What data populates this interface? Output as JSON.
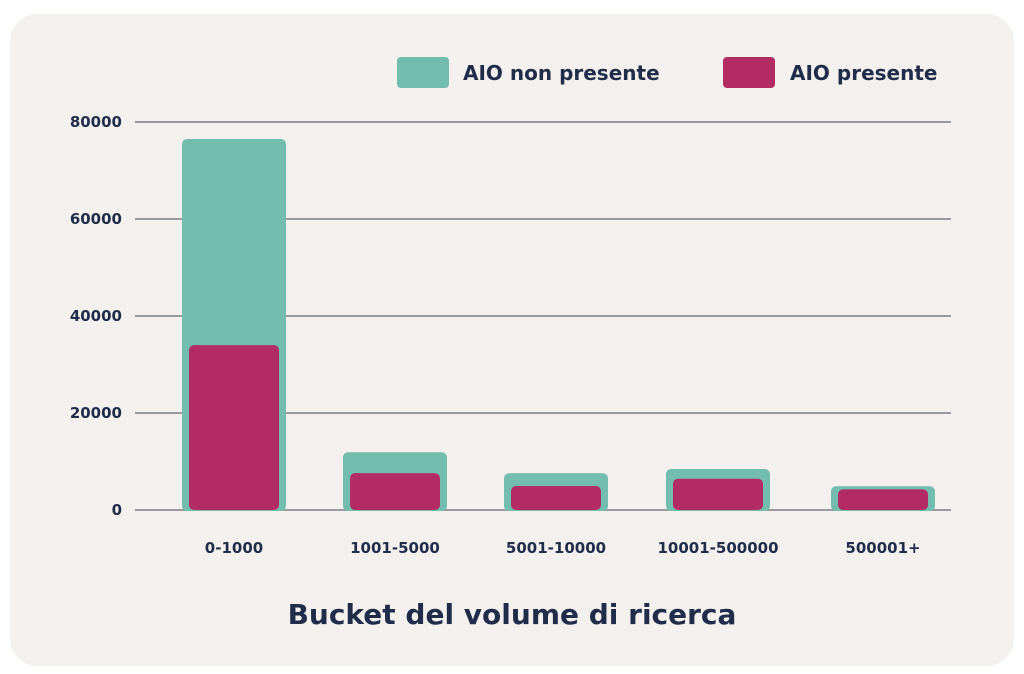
{
  "chart_data": {
    "type": "bar",
    "title": "",
    "xlabel": "Bucket del volume di ricerca",
    "ylabel": "",
    "ylim": [
      0,
      80000
    ],
    "yticks": [
      "0",
      "20000",
      "40000",
      "60000",
      "80000"
    ],
    "grid": true,
    "legend_position": "top-right",
    "categories": [
      "0-1000",
      "1001-5000",
      "5001-10000",
      "10001-500000",
      "500001+"
    ],
    "series": [
      {
        "name": "AIO non presente",
        "color": "#72bdad",
        "values": [
          76500,
          11900,
          7600,
          8450,
          4900
        ]
      },
      {
        "name": "AIO presente",
        "color": "#b22b62",
        "values": [
          34000,
          7600,
          4950,
          6450,
          4250
        ]
      }
    ]
  }
}
